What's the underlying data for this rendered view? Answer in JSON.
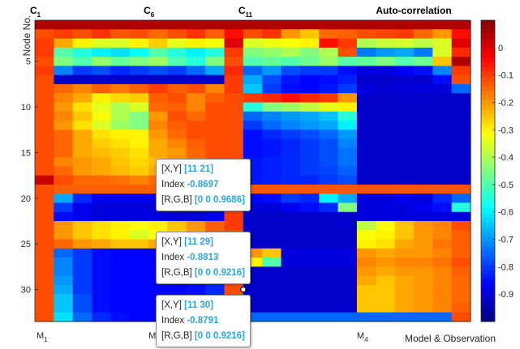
{
  "chart_data": {
    "type": "heatmap",
    "title": "Auto-correlation",
    "ylabel": "Node No.",
    "xlabel": "Model & Observation",
    "column_group_labels": [
      {
        "base": "C",
        "sub": "1"
      },
      {
        "base": "C",
        "sub": "6"
      },
      {
        "base": "C",
        "sub": "11"
      }
    ],
    "x_ticks": [
      {
        "base": "M",
        "sub": "1"
      },
      {
        "base": "M",
        "sub": ""
      },
      {
        "base": "",
        "sub": "2"
      },
      {
        "base": "M",
        "sub": "4"
      }
    ],
    "y_ticks": [
      5,
      10,
      15,
      20,
      25,
      30
    ],
    "rows": 33,
    "cols": 23,
    "colorbar": {
      "min": -1,
      "max": 0.1,
      "ticks": [
        "0",
        "-0.1",
        "-0.2",
        "-0.3",
        "-0.4",
        "-0.5",
        "-0.6",
        "-0.7",
        "-0.8",
        "-0.9"
      ],
      "colormap": "jet"
    },
    "values": [
      [
        0.05,
        0.05,
        0.05,
        0.05,
        0.05,
        0.05,
        0.05,
        0.05,
        0.05,
        0.05,
        0.05,
        0.05,
        0.05,
        0.05,
        0.05,
        0.05,
        0.05,
        0.05,
        0.05,
        0.05,
        0.05,
        0.05,
        0.05
      ],
      [
        -0.12,
        -0.1,
        -0.12,
        -0.09,
        -0.13,
        -0.12,
        -0.15,
        -0.12,
        -0.09,
        -0.14,
        -0.05,
        -0.12,
        -0.09,
        -0.2,
        -0.25,
        -0.15,
        -0.14,
        -0.12,
        -0.11,
        -0.1,
        -0.15,
        -0.2,
        -0.05
      ],
      [
        -0.1,
        -0.22,
        -0.3,
        -0.35,
        -0.35,
        -0.3,
        -0.26,
        -0.34,
        -0.3,
        -0.32,
        0.0,
        -0.35,
        -0.33,
        -0.32,
        -0.3,
        -0.05,
        -0.1,
        -0.4,
        -0.37,
        -0.36,
        -0.38,
        -0.35,
        0.0
      ],
      [
        -0.1,
        -0.5,
        -0.55,
        -0.6,
        -0.62,
        -0.58,
        -0.5,
        -0.55,
        -0.6,
        -0.55,
        -0.1,
        -0.45,
        -0.43,
        -0.4,
        -0.45,
        -0.4,
        -0.12,
        -0.73,
        -0.7,
        -0.68,
        -0.73,
        -0.35,
        -0.08
      ],
      [
        -0.12,
        -0.45,
        -0.5,
        -0.43,
        -0.48,
        -0.45,
        -0.42,
        -0.5,
        -0.55,
        -0.45,
        -0.12,
        -0.5,
        -0.48,
        -0.5,
        -0.47,
        -0.42,
        -0.5,
        -0.48,
        -0.45,
        -0.5,
        -0.47,
        -0.25,
        0.05
      ],
      [
        -0.1,
        -0.72,
        -0.8,
        -0.78,
        -0.82,
        -0.8,
        -0.78,
        -0.8,
        -0.75,
        -0.68,
        -0.08,
        -0.75,
        -0.7,
        -0.78,
        -0.8,
        -0.8,
        -0.85,
        -0.9,
        -0.9,
        -0.87,
        -0.85,
        -0.72,
        -0.1
      ],
      [
        -0.12,
        -0.92,
        -0.92,
        -0.92,
        -0.92,
        -0.92,
        -0.92,
        -0.92,
        -0.92,
        -0.92,
        -0.1,
        -0.68,
        -0.78,
        -0.84,
        -0.86,
        -0.85,
        -0.83,
        -0.92,
        -0.92,
        -0.91,
        -0.92,
        -0.85,
        -0.12
      ],
      [
        -0.12,
        -0.15,
        -0.18,
        -0.14,
        -0.17,
        -0.14,
        -0.1,
        -0.14,
        -0.12,
        -0.18,
        -0.1,
        -0.65,
        -0.8,
        -0.85,
        -0.86,
        -0.84,
        -0.8,
        -0.9,
        -0.91,
        -0.9,
        -0.9,
        -0.9,
        -0.75
      ],
      [
        -0.12,
        -0.18,
        -0.22,
        -0.3,
        -0.27,
        -0.26,
        -0.14,
        -0.12,
        -0.18,
        -0.14,
        -0.12,
        -0.1,
        -0.08,
        -0.05,
        -0.08,
        -0.1,
        -0.2,
        -0.92,
        -0.92,
        -0.92,
        -0.92,
        -0.92,
        -0.92
      ],
      [
        -0.12,
        -0.2,
        -0.28,
        -0.34,
        -0.4,
        -0.35,
        -0.15,
        -0.14,
        -0.18,
        -0.12,
        -0.12,
        -0.55,
        -0.45,
        -0.42,
        -0.38,
        -0.34,
        -0.3,
        -0.92,
        -0.92,
        -0.92,
        -0.92,
        -0.92,
        -0.92
      ],
      [
        -0.12,
        -0.18,
        -0.25,
        -0.32,
        -0.4,
        -0.45,
        -0.2,
        -0.12,
        -0.15,
        -0.12,
        -0.12,
        -0.75,
        -0.72,
        -0.7,
        -0.68,
        -0.65,
        -0.55,
        -0.92,
        -0.92,
        -0.92,
        -0.92,
        -0.92,
        -0.92
      ],
      [
        -0.12,
        -0.2,
        -0.28,
        -0.35,
        -0.42,
        -0.45,
        -0.18,
        -0.14,
        -0.12,
        -0.12,
        -0.12,
        -0.8,
        -0.75,
        -0.72,
        -0.7,
        -0.68,
        -0.6,
        -0.92,
        -0.92,
        -0.92,
        -0.92,
        -0.92,
        -0.92
      ],
      [
        -0.12,
        -0.15,
        -0.22,
        -0.28,
        -0.3,
        -0.3,
        -0.2,
        -0.15,
        -0.12,
        -0.12,
        -0.12,
        -0.85,
        -0.82,
        -0.8,
        -0.78,
        -0.75,
        -0.7,
        -0.92,
        -0.92,
        -0.92,
        -0.92,
        -0.92,
        -0.92
      ],
      [
        -0.12,
        -0.15,
        -0.22,
        -0.26,
        -0.28,
        -0.3,
        -0.22,
        -0.18,
        -0.14,
        -0.12,
        -0.12,
        -0.85,
        -0.84,
        -0.82,
        -0.8,
        -0.78,
        -0.72,
        -0.92,
        -0.92,
        -0.92,
        -0.92,
        -0.92,
        -0.92
      ],
      [
        -0.12,
        -0.15,
        -0.22,
        -0.24,
        -0.26,
        -0.28,
        -0.22,
        -0.2,
        -0.15,
        -0.12,
        -0.12,
        -0.85,
        -0.84,
        -0.82,
        -0.8,
        -0.78,
        -0.74,
        -0.92,
        -0.92,
        -0.92,
        -0.92,
        -0.92,
        -0.92
      ],
      [
        -0.12,
        -0.18,
        -0.2,
        -0.22,
        -0.25,
        -0.27,
        -0.24,
        -0.2,
        -0.16,
        -0.12,
        -0.12,
        -0.84,
        -0.83,
        -0.82,
        -0.8,
        -0.78,
        -0.74,
        -0.92,
        -0.92,
        -0.92,
        -0.92,
        -0.92,
        -0.92
      ],
      [
        -0.12,
        -0.15,
        -0.2,
        -0.22,
        -0.24,
        -0.26,
        -0.22,
        -0.2,
        -0.16,
        -0.12,
        -0.12,
        -0.84,
        -0.83,
        -0.82,
        -0.8,
        -0.79,
        -0.76,
        -0.92,
        -0.92,
        -0.92,
        -0.92,
        -0.92,
        -0.92
      ],
      [
        0.02,
        -0.12,
        -0.15,
        -0.15,
        -0.16,
        -0.18,
        -0.15,
        -0.14,
        -0.12,
        -0.12,
        -0.1,
        -0.84,
        -0.83,
        -0.82,
        -0.82,
        -0.8,
        -0.78,
        -0.92,
        -0.92,
        -0.92,
        -0.92,
        -0.92,
        -0.92
      ],
      [
        -0.12,
        -0.14,
        -0.14,
        -0.14,
        -0.14,
        -0.14,
        -0.14,
        -0.14,
        -0.14,
        -0.14,
        -0.12,
        -0.13,
        -0.13,
        -0.13,
        -0.13,
        -0.13,
        -0.13,
        -0.13,
        -0.13,
        -0.13,
        -0.13,
        -0.13,
        -0.13
      ],
      [
        -0.12,
        -0.68,
        -0.82,
        -0.88,
        -0.88,
        -0.88,
        -0.88,
        -0.88,
        -0.85,
        -0.82,
        -0.12,
        -0.87,
        -0.85,
        -0.8,
        -0.82,
        -0.6,
        -0.68,
        -0.9,
        -0.9,
        -0.88,
        -0.9,
        -0.82,
        -0.75
      ],
      [
        -0.12,
        -0.8,
        -0.88,
        -0.9,
        -0.9,
        -0.9,
        -0.9,
        -0.9,
        -0.88,
        -0.85,
        -0.12,
        -0.9,
        -0.9,
        -0.88,
        -0.85,
        -0.82,
        -0.45,
        -0.9,
        -0.9,
        -0.9,
        -0.88,
        -0.85,
        -0.55
      ],
      [
        -0.12,
        -0.85,
        -0.88,
        -0.9,
        -0.9,
        -0.9,
        -0.9,
        -0.9,
        -0.9,
        -0.88,
        -0.1,
        -0.92,
        -0.92,
        -0.92,
        -0.92,
        -0.92,
        -0.92,
        -0.9,
        -0.9,
        -0.9,
        -0.9,
        -0.9,
        -0.9
      ],
      [
        -0.12,
        -0.2,
        -0.25,
        -0.28,
        -0.3,
        -0.32,
        -0.3,
        -0.25,
        -0.2,
        -0.14,
        -0.1,
        -0.92,
        -0.92,
        -0.92,
        -0.92,
        -0.92,
        -0.92,
        -0.38,
        -0.32,
        -0.25,
        -0.2,
        -0.18,
        -0.12
      ],
      [
        -0.12,
        -0.2,
        -0.25,
        -0.28,
        -0.3,
        -0.35,
        -0.32,
        -0.28,
        -0.22,
        -0.14,
        -0.12,
        -0.92,
        -0.92,
        -0.92,
        -0.92,
        -0.92,
        -0.92,
        -0.32,
        -0.3,
        -0.25,
        -0.2,
        -0.18,
        -0.14
      ],
      [
        -0.12,
        -0.15,
        -0.2,
        -0.22,
        -0.25,
        -0.25,
        -0.22,
        -0.2,
        -0.18,
        -0.14,
        -0.12,
        -0.92,
        -0.92,
        -0.92,
        -0.92,
        -0.92,
        -0.92,
        -0.3,
        -0.28,
        -0.22,
        -0.2,
        -0.16,
        -0.14
      ],
      [
        -0.12,
        -0.75,
        -0.8,
        -0.85,
        -0.86,
        -0.86,
        -0.86,
        -0.86,
        -0.85,
        -0.82,
        -0.12,
        -0.2,
        -0.25,
        -0.9,
        -0.9,
        -0.9,
        -0.9,
        -0.2,
        -0.22,
        -0.2,
        -0.2,
        -0.18,
        -0.14
      ],
      [
        -0.12,
        -0.72,
        -0.8,
        -0.85,
        -0.86,
        -0.86,
        -0.86,
        -0.86,
        -0.85,
        -0.82,
        -0.12,
        -0.3,
        -0.5,
        -0.9,
        -0.9,
        -0.9,
        -0.9,
        -0.18,
        -0.2,
        -0.18,
        -0.18,
        -0.16,
        -0.12
      ],
      [
        -0.12,
        -0.72,
        -0.8,
        -0.85,
        -0.86,
        -0.86,
        -0.86,
        -0.86,
        -0.85,
        -0.82,
        -0.12,
        -0.92,
        -0.92,
        -0.92,
        -0.92,
        -0.92,
        -0.92,
        -0.2,
        -0.22,
        -0.2,
        -0.2,
        -0.18,
        -0.14
      ],
      [
        -0.12,
        -0.7,
        -0.8,
        -0.85,
        -0.86,
        -0.86,
        -0.86,
        -0.86,
        -0.85,
        -0.82,
        -0.12,
        -0.92,
        -0.92,
        -0.92,
        -0.92,
        -0.92,
        -0.92,
        -0.22,
        -0.25,
        -0.22,
        -0.2,
        -0.18,
        -0.15
      ],
      [
        -0.12,
        -0.68,
        -0.8,
        -0.85,
        -0.86,
        -0.86,
        -0.86,
        -0.86,
        -0.85,
        -0.82,
        -0.12,
        -0.92,
        -0.92,
        -0.92,
        -0.92,
        -0.92,
        -0.92,
        -0.25,
        -0.25,
        -0.22,
        -0.2,
        -0.18,
        -0.15
      ],
      [
        -0.12,
        -0.65,
        -0.78,
        -0.85,
        -0.86,
        -0.86,
        -0.86,
        -0.86,
        -0.85,
        -0.82,
        -0.12,
        -0.92,
        -0.92,
        -0.92,
        -0.92,
        -0.92,
        -0.92,
        -0.25,
        -0.25,
        -0.22,
        -0.2,
        -0.18,
        -0.15
      ],
      [
        -0.12,
        -0.65,
        -0.78,
        -0.85,
        -0.86,
        -0.86,
        -0.86,
        -0.86,
        -0.85,
        -0.82,
        -0.12,
        -0.92,
        -0.92,
        -0.92,
        -0.92,
        -0.92,
        -0.92,
        -0.25,
        -0.25,
        -0.22,
        -0.2,
        -0.18,
        -0.14
      ],
      [
        -0.12,
        -0.62,
        -0.75,
        -0.82,
        -0.85,
        -0.86,
        -0.86,
        -0.86,
        -0.85,
        -0.82,
        -0.12,
        -0.75,
        -0.75,
        -0.75,
        -0.75,
        -0.75,
        -0.75,
        -0.75,
        -0.75,
        -0.75,
        -0.75,
        -0.75,
        -0.12
      ]
    ],
    "datatips": [
      {
        "xy_label": "[X,Y]",
        "xy": "[11 21]",
        "index_label": "Index",
        "index": "-0.8697",
        "rgb_label": "[R,G,B]",
        "rgb": "[0 0 0.9686]",
        "col": 11,
        "row": 21
      },
      {
        "xy_label": "[X,Y]",
        "xy": "[11 29]",
        "index_label": "Index",
        "index": "-0.8813",
        "rgb_label": "[R,G,B]",
        "rgb": "[0 0 0.9216]",
        "col": 11,
        "row": 29
      },
      {
        "xy_label": "[X,Y]",
        "xy": "[11 30]",
        "index_label": "Index",
        "index": "-0.8791",
        "rgb_label": "[R,G,B]",
        "rgb": "[0 0 0.9216]",
        "col": 11,
        "row": 30
      }
    ]
  }
}
